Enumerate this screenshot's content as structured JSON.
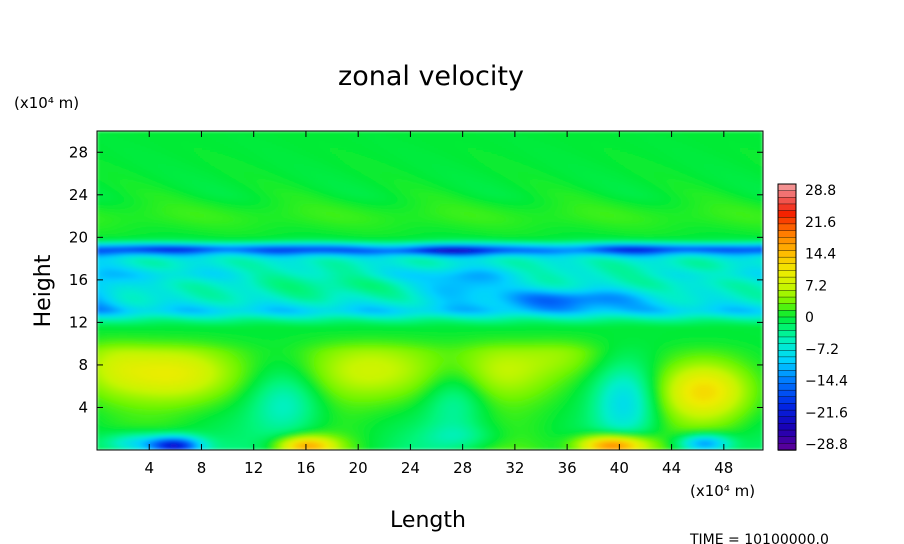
{
  "chart_data": {
    "type": "heatmap",
    "title": "zonal velocity",
    "xlabel": "Length",
    "ylabel": "Height",
    "x_unit": "(x10⁴ m)",
    "y_unit": "(x10⁴ m)",
    "x_ticks": [
      4,
      8,
      12,
      16,
      20,
      24,
      28,
      32,
      36,
      40,
      44,
      48
    ],
    "y_ticks": [
      4,
      8,
      12,
      16,
      20,
      24,
      28
    ],
    "xlim": [
      0,
      51
    ],
    "ylim": [
      0,
      30
    ],
    "colorbar": {
      "tick_labels": [
        "28.8",
        "21.6",
        "14.4",
        "7.2",
        "0",
        "−7.2",
        "−14.4",
        "−21.6",
        "−28.8"
      ],
      "range": [
        -28.8,
        28.8
      ]
    },
    "features": [
      {
        "x": 3,
        "y": 0.5,
        "value": -11
      },
      {
        "x": 6,
        "y": 0.4,
        "value": -20
      },
      {
        "x": 16,
        "y": 0.4,
        "value": 14
      },
      {
        "x": 39.5,
        "y": 0.4,
        "value": 20
      },
      {
        "x": 46.5,
        "y": 0.6,
        "value": -14
      },
      {
        "x": 6,
        "y": 7.2,
        "value": 9
      },
      {
        "x": 21,
        "y": 7.5,
        "value": 7
      },
      {
        "x": 46.5,
        "y": 5.5,
        "value": 11
      },
      {
        "x": 31,
        "y": 7.5,
        "value": 6
      },
      {
        "x": 14.5,
        "y": 5,
        "value": -6
      },
      {
        "x": 27.5,
        "y": 5.5,
        "value": -5
      },
      {
        "x": 40.5,
        "y": 5,
        "value": -8
      },
      {
        "x": 36,
        "y": 14,
        "value": -14
      },
      {
        "x": 26,
        "y": 18.5,
        "value": -16
      },
      {
        "x": 18,
        "y": 18.8,
        "value": -12
      }
    ],
    "grid": false,
    "legend": "colorbar-right"
  },
  "footer": {
    "time_label": "TIME =  10100000.0"
  }
}
